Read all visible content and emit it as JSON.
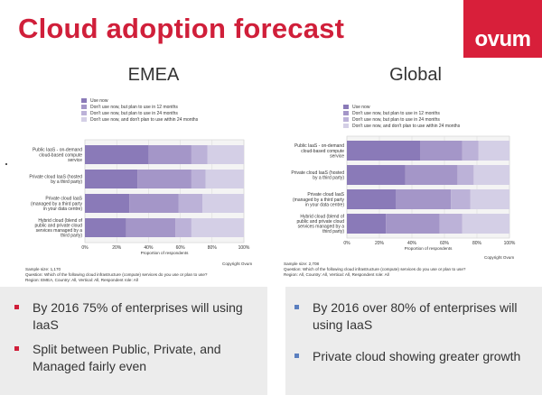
{
  "slide": {
    "title": "Cloud adoption forecast",
    "logo": "ovum",
    "colors": {
      "title": "#d01f3a",
      "logo_bg": "#d81f3a",
      "box_bg": "#ececec",
      "bullet_left": "#d01f3a",
      "bullet_right": "#5b7fbf"
    }
  },
  "legend": [
    {
      "label": "Use now",
      "color": "#8a7ab8"
    },
    {
      "label": "Don't use now, but plan to use in 12 months",
      "color": "#a496c8"
    },
    {
      "label": "Don't use now, but plan to use in 24 months",
      "color": "#bcb2d8"
    },
    {
      "label": "Don't use now, and don't plan to use within 24 months",
      "color": "#d4cfe6"
    }
  ],
  "chart_data": [
    {
      "type": "bar",
      "orientation": "horizontal",
      "stacked": true,
      "title": "EMEA",
      "xlabel": "Proportion of respondents",
      "xlim": [
        0,
        100
      ],
      "x_ticks": [
        "0%",
        "20%",
        "40%",
        "60%",
        "80%",
        "100%"
      ],
      "categories": [
        "Public IaaS - on-demand cloud-based compute service",
        "Private cloud IaaS (hosted by a third party)",
        "Private cloud IaaS (managed by a third party in your data centre)",
        "Hybrid cloud (blend of public and private cloud services managed by a third party)"
      ],
      "series": [
        {
          "name": "Use now",
          "values": [
            40,
            33,
            28,
            26
          ]
        },
        {
          "name": "Don't use now, but plan to use in 12 months",
          "values": [
            27,
            34,
            31,
            31
          ]
        },
        {
          "name": "Don't use now, but plan to use in 24 months",
          "values": [
            10,
            9,
            15,
            10
          ]
        },
        {
          "name": "Don't use now, and don't plan to use within 24 months",
          "values": [
            23,
            24,
            26,
            33
          ]
        }
      ],
      "notes": [
        "Sample size: 1,170",
        "Question: Which of the following cloud infrastructure (compute) services do you use or plan to use?",
        "Region: EMEA, Country: All, Vertical: All, Respondent role: All"
      ],
      "copyright": "Copyright Ovum"
    },
    {
      "type": "bar",
      "orientation": "horizontal",
      "stacked": true,
      "title": "Global",
      "xlabel": "Proportion of respondents",
      "xlim": [
        0,
        100
      ],
      "x_ticks": [
        "0%",
        "20%",
        "40%",
        "60%",
        "80%",
        "100%"
      ],
      "categories": [
        "Public IaaS - on-demand cloud-based compute service",
        "Private cloud IaaS (hosted by a third party)",
        "Private cloud IaaS (managed by a third party in your data centre)",
        "Hybrid cloud (blend of public and private cloud services managed by a third party)"
      ],
      "series": [
        {
          "name": "Use now",
          "values": [
            45,
            36,
            30,
            24
          ]
        },
        {
          "name": "Don't use now, but plan to use in 12 months",
          "values": [
            26,
            32,
            34,
            33
          ]
        },
        {
          "name": "Don't use now, but plan to use in 24 months",
          "values": [
            10,
            10,
            12,
            14
          ]
        },
        {
          "name": "Don't use now, and don't plan to use within 24 months",
          "values": [
            19,
            22,
            24,
            29
          ]
        }
      ],
      "notes": [
        "Sample size: 2,708",
        "Question: Which of the following cloud infrastructure (compute) services do you use or plan to use?",
        "Region: All, Country: All, Vertical: All, Respondent role: All"
      ],
      "copyright": "Copyright Ovum"
    }
  ],
  "bullets_left": [
    "By 2016 75% of enterprises will using IaaS",
    "Split between Public, Private, and Managed fairly even"
  ],
  "bullets_right": [
    "By 2016 over 80% of enterprises will using IaaS",
    "Private cloud showing greater growth"
  ]
}
